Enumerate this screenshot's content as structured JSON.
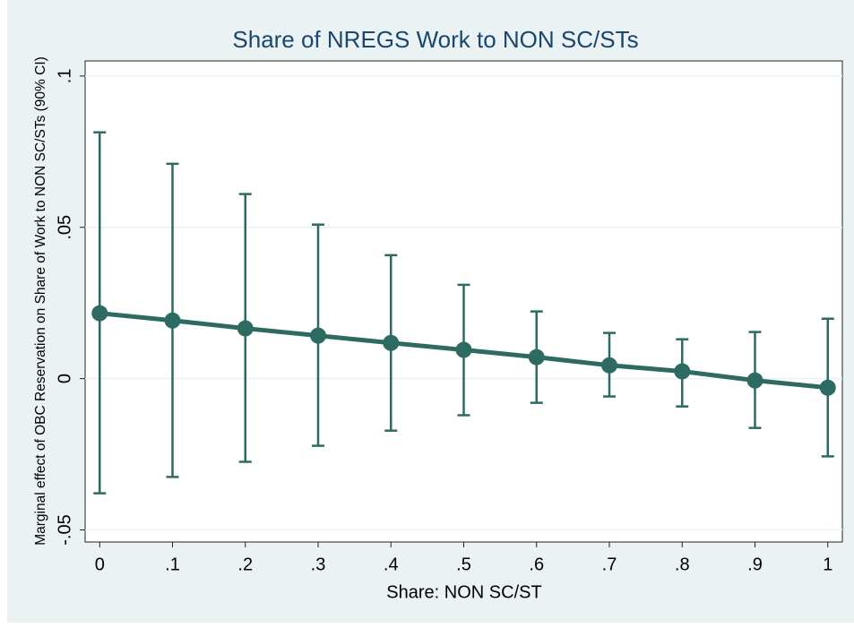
{
  "chart_data": {
    "type": "errorbar",
    "title": "Share of NREGS Work to NON SC/STs",
    "x_label": "Share: NON SC/ST",
    "y_label": "Marginal effect of OBC Reservation on Share of Work to NON SC/STs (90% CI)",
    "x": [
      0,
      0.1,
      0.2,
      0.3,
      0.4,
      0.5,
      0.6,
      0.7,
      0.8,
      0.9,
      1
    ],
    "values": [
      0.0216,
      0.0192,
      0.0166,
      0.0142,
      0.0118,
      0.0095,
      0.0071,
      0.0044,
      0.0024,
      -0.0006,
      -0.003
    ],
    "lower": [
      -0.0379,
      -0.0325,
      -0.0275,
      -0.0222,
      -0.0172,
      -0.0121,
      -0.008,
      -0.0059,
      -0.0092,
      -0.0163,
      -0.0257
    ],
    "upper": [
      0.0814,
      0.071,
      0.061,
      0.0509,
      0.0408,
      0.031,
      0.0222,
      0.0151,
      0.013,
      0.0154,
      0.0198
    ],
    "color": "#2d6b62",
    "xlim": [
      -0.02,
      1.02
    ],
    "ylim": [
      -0.054,
      0.105
    ],
    "xticks": [
      0,
      {
        "value": 0.1,
        "label": ".1"
      },
      {
        "value": 0.2,
        "label": ".2"
      },
      {
        "value": 0.3,
        "label": ".3"
      },
      {
        "value": 0.4,
        "label": ".4"
      },
      {
        "value": 0.5,
        "label": ".5"
      },
      {
        "value": 0.6,
        "label": ".6"
      },
      {
        "value": 0.7,
        "label": ".7"
      },
      {
        "value": 0.8,
        "label": ".8"
      },
      {
        "value": 0.9,
        "label": ".9"
      },
      1
    ],
    "yticks": [
      {
        "value": -0.05,
        "label": "-.05"
      },
      0,
      {
        "value": 0.05,
        "label": ".05"
      },
      {
        "value": 0.1,
        "label": ".1"
      }
    ],
    "grid": true
  }
}
